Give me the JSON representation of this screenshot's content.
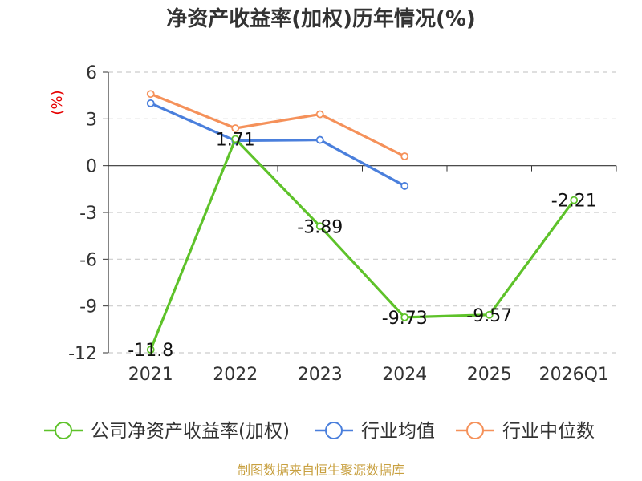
{
  "colors": {
    "company": "#5ec22a",
    "industry_avg": "#4a7fdc",
    "industry_median": "#f5915a",
    "grid": "#cccccc",
    "axis": "#333333",
    "source": "#c8a040",
    "unit": "#e60000"
  },
  "chart_data": {
    "type": "line",
    "title": "净资产收益率(加权)历年情况(%)",
    "ylabel": "(%)",
    "categories": [
      "2021",
      "2022",
      "2023",
      "2024",
      "2025",
      "2026Q1"
    ],
    "ylim": [
      -12,
      6
    ],
    "yticks": [
      6,
      3,
      0,
      -3,
      -6,
      -9,
      -12
    ],
    "ytick_labels": [
      "6",
      "3",
      "0",
      "-3",
      "-6",
      "-9",
      "-12"
    ],
    "grid": true,
    "series": [
      {
        "name": "公司净资产收益率(加权)",
        "color_key": "company",
        "values": [
          -11.8,
          1.71,
          -3.89,
          -9.73,
          -9.57,
          -2.21
        ],
        "labels": [
          "-11.8",
          "1.71",
          "-3.89",
          "-9.73",
          "-9.57",
          "-2.21"
        ]
      },
      {
        "name": "行业均值",
        "color_key": "industry_avg",
        "values": [
          4.0,
          1.6,
          1.65,
          -1.3,
          null,
          null
        ]
      },
      {
        "name": "行业中位数",
        "color_key": "industry_median",
        "values": [
          4.6,
          2.4,
          3.3,
          0.6,
          null,
          null
        ]
      }
    ],
    "legend_position": "bottom"
  },
  "source": "制图数据来自恒生聚源数据库"
}
